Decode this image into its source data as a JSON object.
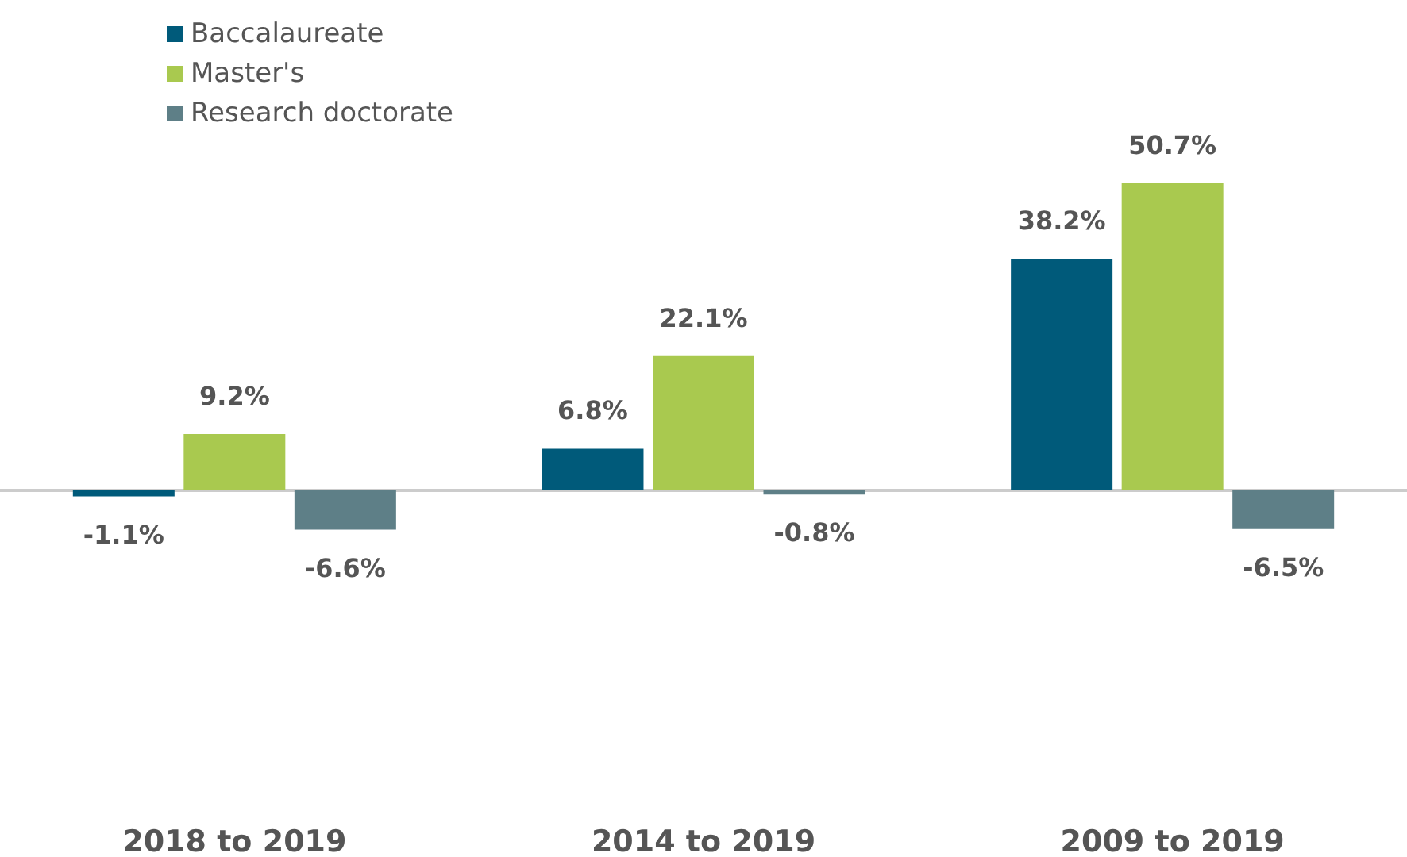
{
  "chart_data": {
    "type": "bar",
    "categories": [
      "2018 to 2019",
      "2014 to 2019",
      "2009 to 2019"
    ],
    "series": [
      {
        "name": "Baccalaureate",
        "color": "#005a7a",
        "values": [
          -1.1,
          6.8,
          38.2
        ],
        "value_labels": [
          "-1.1%",
          "6.8%",
          "38.2%"
        ]
      },
      {
        "name": "Master's",
        "color": "#a9c94f",
        "values": [
          9.2,
          22.1,
          50.7
        ],
        "value_labels": [
          "9.2%",
          "22.1%",
          "50.7%"
        ]
      },
      {
        "name": "Research doctorate",
        "color": "#5e7f87",
        "values": [
          -6.6,
          -0.8,
          -6.5
        ],
        "value_labels": [
          "-6.6%",
          "-0.8%",
          "-6.5%"
        ]
      }
    ],
    "legend": "top left",
    "grid": false
  }
}
